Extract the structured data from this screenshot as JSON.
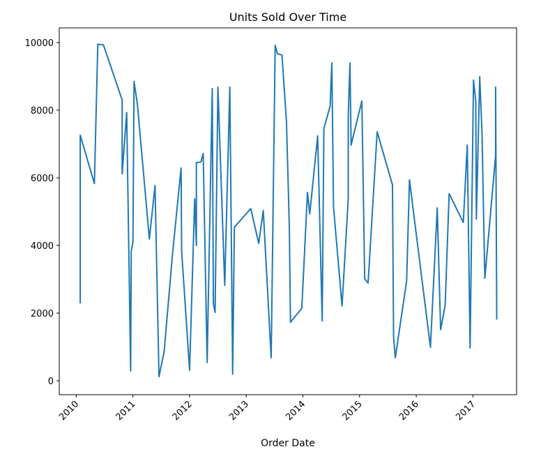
{
  "chart_data": {
    "type": "line",
    "title": "Units Sold Over Time",
    "x_label": "Order Date",
    "color": "#1f77b4",
    "x": [
      2010.07,
      2010.07,
      2010.32,
      2010.38,
      2010.48,
      2010.81,
      2010.81,
      2010.89,
      2010.96,
      2010.97,
      2011.0,
      2011.02,
      2011.08,
      2011.29,
      2011.39,
      2011.46,
      2011.55,
      2011.7,
      2011.85,
      2011.86,
      2012.0,
      2012.09,
      2012.12,
      2012.12,
      2012.2,
      2012.24,
      2012.31,
      2012.4,
      2012.42,
      2012.45,
      2012.5,
      2012.62,
      2012.71,
      2012.76,
      2012.79,
      2013.08,
      2013.22,
      2013.3,
      2013.44,
      2013.51,
      2013.55,
      2013.63,
      2013.71,
      2013.76,
      2013.78,
      2013.98,
      2014.08,
      2014.12,
      2014.26,
      2014.34,
      2014.37,
      2014.48,
      2014.51,
      2014.54,
      2014.69,
      2014.8,
      2014.8,
      2014.83,
      2014.85,
      2015.04,
      2015.09,
      2015.15,
      2015.31,
      2015.58,
      2015.6,
      2015.63,
      2015.83,
      2015.88,
      2016.25,
      2016.37,
      2016.43,
      2016.51,
      2016.58,
      2016.83,
      2016.9,
      2016.95,
      2017.01,
      2017.05,
      2017.06,
      2017.12,
      2017.16,
      2017.21,
      2017.4,
      2017.4,
      2017.42
    ],
    "values": [
      2290,
      7260,
      5830,
      9950,
      9930,
      8300,
      6120,
      7930,
      290,
      3830,
      4100,
      8850,
      8160,
      4190,
      5770,
      120,
      850,
      3770,
      6290,
      3830,
      310,
      5380,
      4000,
      6450,
      6470,
      6720,
      540,
      8640,
      2270,
      2020,
      8680,
      2820,
      8680,
      190,
      4540,
      5090,
      4060,
      5030,
      680,
      9920,
      9670,
      9630,
      7650,
      4560,
      1730,
      2140,
      5570,
      4930,
      7240,
      1770,
      7460,
      8120,
      9400,
      5130,
      2210,
      5380,
      7840,
      9400,
      6970,
      8270,
      3010,
      2890,
      7360,
      5790,
      1280,
      680,
      2950,
      5940,
      990,
      5110,
      1510,
      2230,
      5530,
      4680,
      6970,
      970,
      8890,
      8270,
      4780,
      8990,
      7340,
      3030,
      6660,
      8680,
      1810
    ],
    "xlim": [
      2009.7,
      2017.77
    ],
    "xticks": [
      2010,
      2011,
      2012,
      2013,
      2014,
      2015,
      2016,
      2017
    ],
    "ylim": [
      -412,
      10433
    ],
    "yticks": [
      0,
      2000,
      4000,
      6000,
      8000,
      10000
    ]
  }
}
